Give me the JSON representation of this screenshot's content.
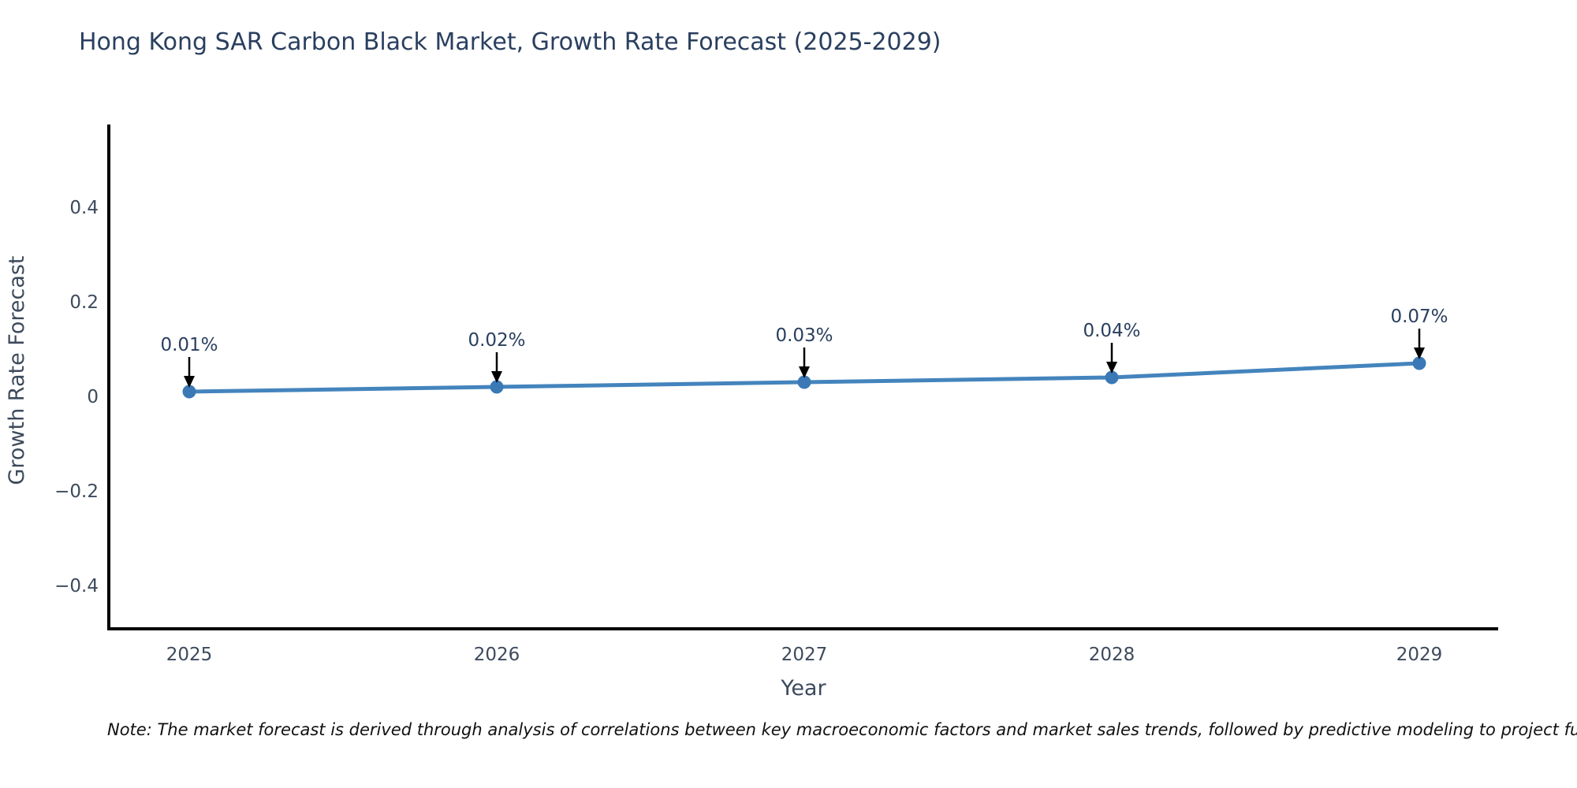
{
  "title": "Hong Kong SAR Carbon Black Market, Growth Rate Forecast (2025-2029)",
  "note": "Note: The market forecast is derived through analysis of correlations between key macroeconomic factors and market sales trends, followed by predictive modeling to project future sales",
  "chart_data": {
    "type": "line",
    "x": [
      "2025",
      "2026",
      "2027",
      "2028",
      "2029"
    ],
    "values": [
      0.01,
      0.02,
      0.03,
      0.04,
      0.07
    ],
    "point_labels": [
      "0.01%",
      "0.02%",
      "0.03%",
      "0.04%",
      "0.07%"
    ],
    "title": "Hong Kong SAR Carbon Black Market, Growth Rate Forecast (2025-2029)",
    "xlabel": "Year",
    "ylabel": "Growth Rate Forecast",
    "yticks": [
      0.4,
      0.2,
      0,
      -0.2,
      -0.4
    ],
    "ytick_labels": [
      "0.4",
      "0.2",
      "0",
      "−0.2",
      "−0.4"
    ],
    "ylim": [
      -0.49,
      0.57
    ],
    "grid": false,
    "legend": "none",
    "annotations_have_arrows": true
  },
  "colors": {
    "background": "#ffffff",
    "line": "#4484bd",
    "marker": "#3a79b5",
    "axis": "#000000",
    "title_text": "#2a3f5f",
    "tick_text": "#3d4a5c",
    "axis_label_text": "#3d4a5c",
    "annotation_text": "#2a3f5f",
    "arrow": "#000000",
    "note_text": "#111111"
  }
}
